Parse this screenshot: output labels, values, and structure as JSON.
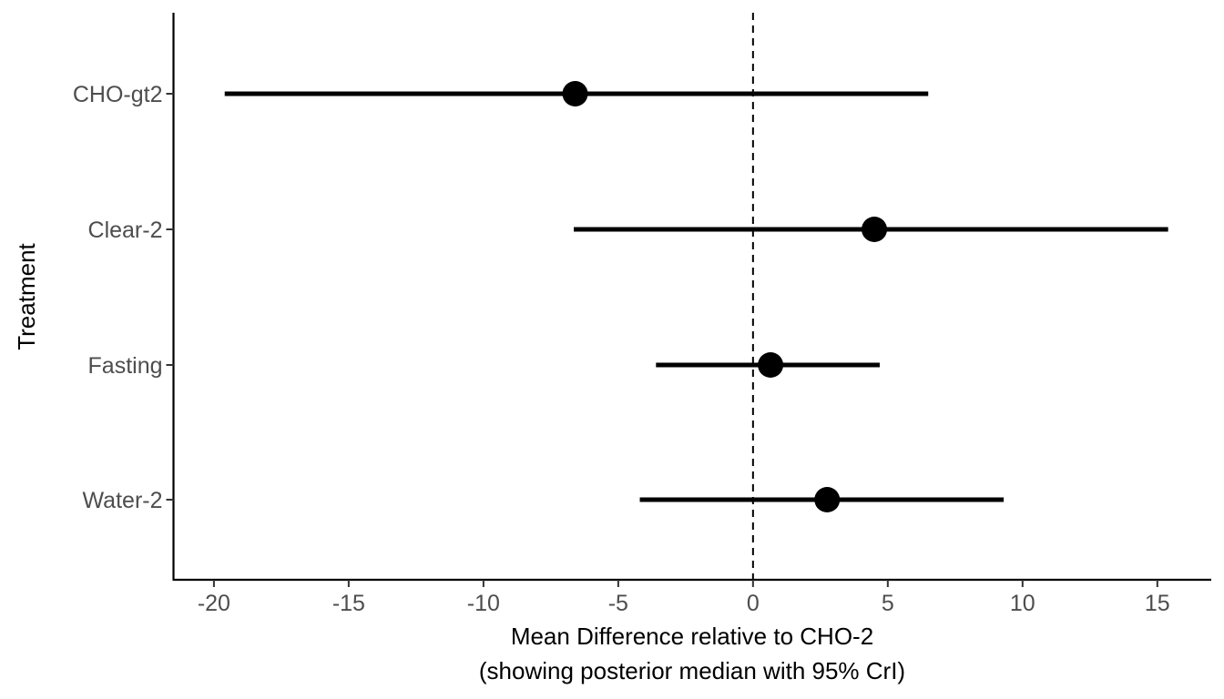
{
  "chart_data": {
    "type": "forest",
    "ylabel": "Treatment",
    "xlabel_line1": "Mean Difference relative to CHO-2",
    "xlabel_line2": "(showing posterior median with 95% CrI)",
    "xlim": [
      -21.5,
      17
    ],
    "x_ticks": [
      -20,
      -15,
      -10,
      -5,
      0,
      5,
      10,
      15
    ],
    "reference_line": 0,
    "grid": false,
    "categories": [
      "CHO-gt2",
      "Clear-2",
      "Fasting",
      "Water-2"
    ],
    "median": [
      -6.6,
      4.5,
      0.65,
      2.75
    ],
    "lower": [
      -19.6,
      -6.65,
      -3.6,
      -4.2
    ],
    "upper": [
      6.5,
      15.4,
      4.7,
      9.3
    ],
    "colors": {
      "marks": "#000000",
      "tick_text": "#4d4d4d"
    }
  }
}
